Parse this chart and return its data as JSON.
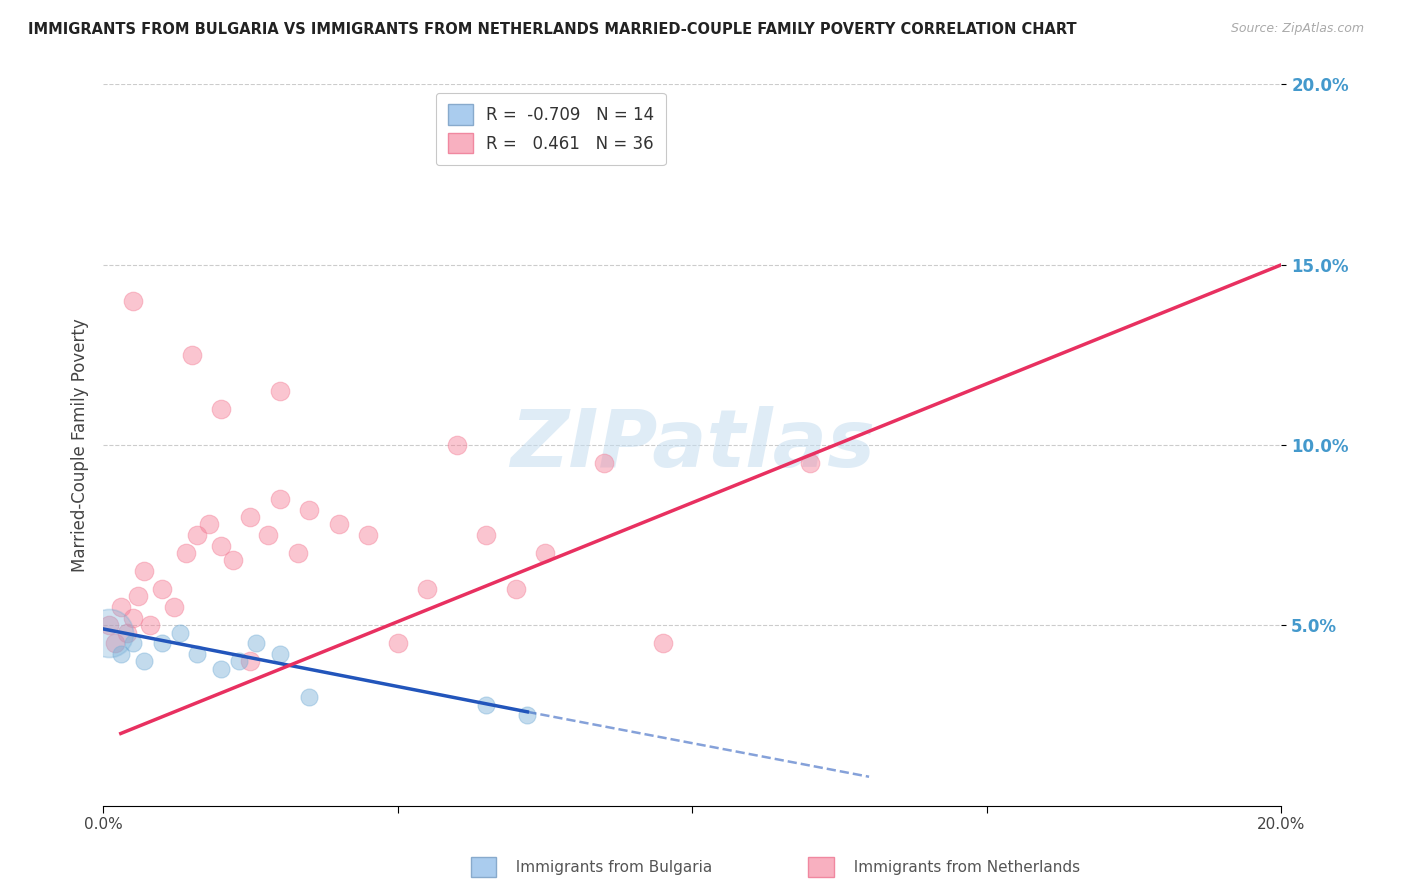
{
  "title": "IMMIGRANTS FROM BULGARIA VS IMMIGRANTS FROM NETHERLANDS MARRIED-COUPLE FAMILY POVERTY CORRELATION CHART",
  "source": "Source: ZipAtlas.com",
  "watermark": "ZIPatlas",
  "ylabel": "Married-Couple Family Poverty",
  "y_tick_labels": [
    "5.0%",
    "10.0%",
    "15.0%",
    "20.0%"
  ],
  "y_tick_values": [
    5,
    10,
    15,
    20
  ],
  "x_range": [
    0,
    20
  ],
  "y_range": [
    0,
    20
  ],
  "bulgaria_color": "#7ab0d8",
  "netherlands_color": "#f48098",
  "bulgaria_line_color": "#2255bb",
  "netherlands_line_color": "#e83060",
  "background_color": "#ffffff",
  "grid_color": "#cccccc",
  "bulgaria_scatter": {
    "x": [
      0.1,
      0.3,
      0.5,
      0.7,
      1.0,
      1.3,
      1.6,
      2.0,
      2.3,
      2.6,
      3.0,
      3.5,
      6.5,
      7.2
    ],
    "y": [
      4.8,
      4.2,
      4.5,
      4.0,
      4.5,
      4.8,
      4.2,
      3.8,
      4.0,
      4.5,
      4.2,
      3.0,
      2.8,
      2.5
    ],
    "size_large": 1200,
    "size_regular": 150
  },
  "netherlands_scatter": {
    "x": [
      0.1,
      0.2,
      0.3,
      0.4,
      0.5,
      0.6,
      0.7,
      0.8,
      1.0,
      1.2,
      1.4,
      1.6,
      1.8,
      2.0,
      2.2,
      2.5,
      2.8,
      3.0,
      3.3,
      3.5,
      4.0,
      4.5,
      5.0,
      5.5,
      6.0,
      6.5,
      7.0,
      7.5,
      8.5,
      9.5,
      1.5,
      2.0,
      2.5,
      3.0,
      0.5,
      12.0
    ],
    "y": [
      5.0,
      4.5,
      5.5,
      4.8,
      5.2,
      5.8,
      6.5,
      5.0,
      6.0,
      5.5,
      7.0,
      7.5,
      7.8,
      7.2,
      6.8,
      8.0,
      7.5,
      8.5,
      7.0,
      8.2,
      7.8,
      7.5,
      4.5,
      6.0,
      10.0,
      7.5,
      6.0,
      7.0,
      9.5,
      4.5,
      12.5,
      11.0,
      4.0,
      11.5,
      14.0,
      9.5
    ],
    "size": 180
  },
  "bulgaria_line": {
    "x_start": 0.0,
    "y_start": 4.9,
    "x_solid_end": 7.2,
    "y_solid_end": 2.6,
    "x_dash_end": 13.0,
    "y_dash_end": 0.8
  },
  "netherlands_line": {
    "x_start": 0.3,
    "y_start": 2.0,
    "x_end": 20.0,
    "y_end": 15.0
  }
}
